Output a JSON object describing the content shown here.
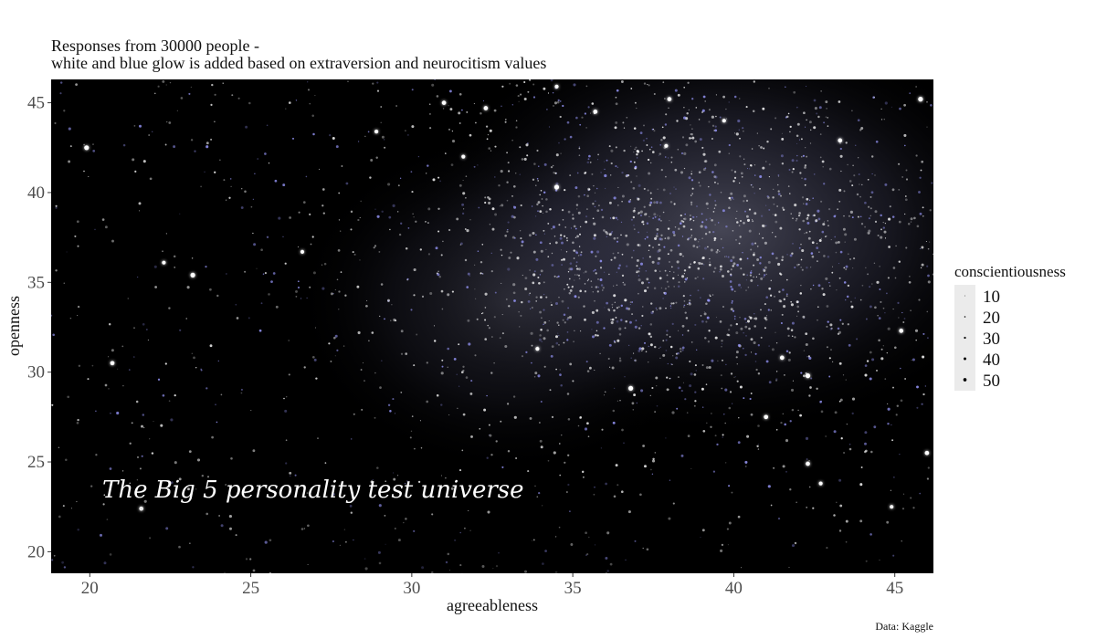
{
  "chart_data": {
    "type": "scatter",
    "title": "Responses from 30000 people -",
    "subtitle": "white and blue glow is added based on extraversion and neurocitism values",
    "xlabel": "agreeableness",
    "ylabel": "openness",
    "xlim": [
      18.8,
      46.2
    ],
    "ylim": [
      18.8,
      46.3
    ],
    "x_ticks": [
      20,
      25,
      30,
      35,
      40,
      45
    ],
    "y_ticks": [
      20,
      25,
      30,
      35,
      40,
      45
    ],
    "grid": false,
    "background": "#000000",
    "point_color": "#ffffff",
    "glow_color": "#9a9aff",
    "annotation": "The Big 5 personality test universe",
    "caption": "Data: Kaggle",
    "legend": {
      "title": "conscientiousness",
      "position": "right",
      "entries": [
        {
          "label": "10",
          "value": 10
        },
        {
          "label": "20",
          "value": 20
        },
        {
          "label": "30",
          "value": 30
        },
        {
          "label": "40",
          "value": 40
        },
        {
          "label": "50",
          "value": 50
        }
      ]
    },
    "highlight_points": [
      {
        "x": 19.9,
        "y": 42.5,
        "size": 50
      },
      {
        "x": 21.6,
        "y": 22.4,
        "size": 45
      },
      {
        "x": 22.3,
        "y": 36.1,
        "size": 40
      },
      {
        "x": 23.2,
        "y": 35.4,
        "size": 50
      },
      {
        "x": 20.7,
        "y": 30.5,
        "size": 45
      },
      {
        "x": 26.6,
        "y": 36.7,
        "size": 40
      },
      {
        "x": 31.0,
        "y": 45.0,
        "size": 45
      },
      {
        "x": 31.6,
        "y": 42.0,
        "size": 40
      },
      {
        "x": 32.3,
        "y": 44.7,
        "size": 45
      },
      {
        "x": 34.5,
        "y": 40.3,
        "size": 50
      },
      {
        "x": 34.5,
        "y": 45.9,
        "size": 40
      },
      {
        "x": 35.7,
        "y": 44.5,
        "size": 45
      },
      {
        "x": 36.8,
        "y": 29.1,
        "size": 50
      },
      {
        "x": 38.0,
        "y": 45.2,
        "size": 45
      },
      {
        "x": 39.7,
        "y": 44.0,
        "size": 40
      },
      {
        "x": 41.0,
        "y": 27.5,
        "size": 45
      },
      {
        "x": 41.5,
        "y": 30.8,
        "size": 45
      },
      {
        "x": 42.3,
        "y": 29.8,
        "size": 50
      },
      {
        "x": 42.3,
        "y": 24.9,
        "size": 45
      },
      {
        "x": 42.7,
        "y": 23.8,
        "size": 40
      },
      {
        "x": 43.3,
        "y": 42.9,
        "size": 45
      },
      {
        "x": 44.9,
        "y": 22.5,
        "size": 40
      },
      {
        "x": 45.2,
        "y": 32.3,
        "size": 45
      },
      {
        "x": 45.8,
        "y": 45.2,
        "size": 50
      },
      {
        "x": 46.0,
        "y": 25.5,
        "size": 45
      },
      {
        "x": 28.9,
        "y": 43.4,
        "size": 40
      },
      {
        "x": 37.9,
        "y": 42.6,
        "size": 40
      },
      {
        "x": 33.9,
        "y": 31.3,
        "size": 40
      }
    ]
  }
}
